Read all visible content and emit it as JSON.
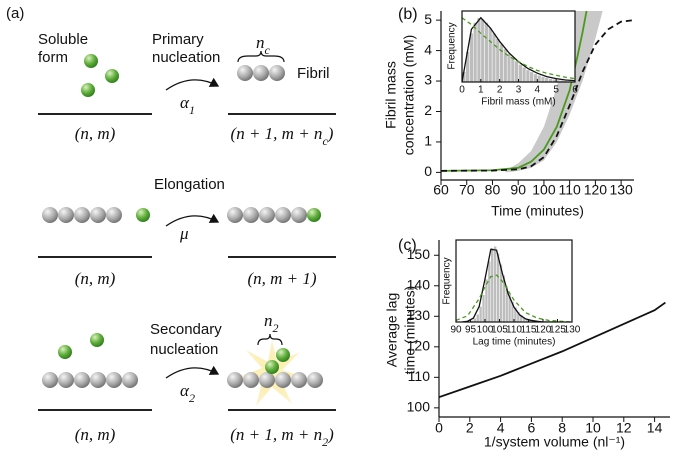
{
  "diagram": {
    "label": "(a)",
    "soluble": [
      "Soluble",
      "form"
    ],
    "primary": [
      "Primary",
      "nucleation"
    ],
    "alpha1": {
      "base": "α",
      "sub": "1"
    },
    "nc": {
      "base": "n",
      "sub": "c"
    },
    "fibril": "Fibril",
    "state1_left": "(n, m)",
    "state1_right": {
      "pre": "(n + 1, m + n",
      "sub": "c",
      "post": ")"
    },
    "elongation": "Elongation",
    "mu": "μ",
    "state2_left": "(n, m)",
    "state2_right": "(n, m + 1)",
    "secondary": [
      "Secondary",
      "nucleation"
    ],
    "alpha2": {
      "base": "α",
      "sub": "2"
    },
    "n2": {
      "base": "n",
      "sub": "2"
    },
    "state3_left": "(n, m)",
    "state3_right": {
      "pre": "(n + 1, m + n",
      "sub": "2",
      "post": ")"
    }
  },
  "chart_data": [
    {
      "type": "line",
      "panel_label": "(b)",
      "xlabel": "Time (minutes)",
      "ylabel": [
        "Fibril mass",
        "concentration (mM)"
      ],
      "xlim": [
        60,
        135
      ],
      "xticks": [
        60,
        70,
        80,
        90,
        100,
        110,
        120,
        130
      ],
      "ylim": [
        -0.25,
        5.3
      ],
      "yticks": [
        0,
        1,
        2,
        3,
        4,
        5
      ],
      "band": {
        "color": "#c9c9c9",
        "x": [
          85,
          90,
          95,
          100,
          105,
          110,
          115,
          120,
          125
        ],
        "upper": [
          0.05,
          0.3,
          0.7,
          1.5,
          2.8,
          4.6,
          7.5,
          10,
          12
        ],
        "lower": [
          0,
          0.05,
          0.15,
          0.4,
          1.0,
          1.9,
          3.0,
          4.4,
          6.0
        ]
      },
      "lines": [
        {
          "color": "#4a9a1e",
          "dash": false,
          "x": [
            60,
            80,
            90,
            95,
            100,
            105,
            110,
            113,
            115,
            117,
            119
          ],
          "values": [
            0.05,
            0.07,
            0.15,
            0.35,
            0.75,
            1.5,
            2.7,
            3.8,
            4.6,
            5.5,
            6.5
          ]
        },
        {
          "color": "#111111",
          "dash": true,
          "x": [
            60,
            80,
            90,
            95,
            100,
            105,
            110,
            115,
            120,
            125,
            130,
            135
          ],
          "values": [
            0.05,
            0.06,
            0.1,
            0.2,
            0.5,
            1.2,
            2.2,
            3.3,
            4.2,
            4.7,
            4.95,
            5.0
          ]
        }
      ]
    },
    {
      "type": "histogram",
      "xlabel": "Fibril mass (mM)",
      "ylabel": [
        "Frequency"
      ],
      "xlim": [
        0,
        6
      ],
      "xticks": [
        0,
        1,
        2,
        3,
        4,
        5,
        6
      ],
      "ylim": [
        0,
        1.05
      ],
      "color": "#bdbdbd",
      "bins": [
        0,
        0.2,
        0.4,
        0.6,
        0.8,
        1,
        1.2,
        1.4,
        1.6,
        1.8,
        2,
        2.2,
        2.4,
        2.6,
        2.8,
        3,
        3.2,
        3.4,
        3.6,
        3.8,
        4,
        4.2,
        4.4,
        4.6,
        4.8,
        5,
        5.2,
        5.4,
        5.6,
        5.8,
        6
      ],
      "counts": [
        0.15,
        0.45,
        0.72,
        0.88,
        0.95,
        0.93,
        0.88,
        0.8,
        0.72,
        0.64,
        0.56,
        0.49,
        0.42,
        0.36,
        0.31,
        0.26,
        0.22,
        0.18,
        0.15,
        0.12,
        0.1,
        0.08,
        0.065,
        0.05,
        0.04,
        0.03,
        0.025,
        0.02,
        0.015,
        0.01
      ],
      "lines": [
        {
          "color": "#111111",
          "dash": false,
          "x": [
            0,
            0.5,
            1,
            1.5,
            2,
            2.5,
            3,
            3.5,
            4,
            4.5,
            5,
            5.5,
            6
          ],
          "values": [
            0,
            0.78,
            0.95,
            0.8,
            0.6,
            0.43,
            0.3,
            0.2,
            0.13,
            0.08,
            0.05,
            0.03,
            0.02
          ]
        },
        {
          "color": "#4a9a1e",
          "dash": true,
          "x": [
            0,
            0.5,
            1,
            1.5,
            2,
            2.5,
            3,
            3.5,
            4,
            4.5,
            5,
            5.5,
            6
          ],
          "values": [
            0.95,
            0.85,
            0.72,
            0.6,
            0.48,
            0.38,
            0.3,
            0.23,
            0.17,
            0.13,
            0.1,
            0.07,
            0.05
          ]
        }
      ]
    },
    {
      "type": "line",
      "panel_label": "(c)",
      "xlabel": "1/system volume (nl⁻¹)",
      "ylabel": [
        "Average lag",
        "time (minutes)"
      ],
      "xlim": [
        0,
        15
      ],
      "xticks": [
        0,
        2,
        4,
        6,
        8,
        10,
        12,
        14
      ],
      "ylim": [
        97,
        155
      ],
      "yticks": [
        100,
        110,
        120,
        130,
        140,
        150
      ],
      "lines": [
        {
          "color": "#111111",
          "dash": false,
          "x": [
            0,
            2,
            4,
            6,
            8,
            10,
            12,
            14,
            14.7
          ],
          "values": [
            103.5,
            107,
            110.5,
            114.5,
            118.5,
            123,
            127.5,
            132,
            134.5
          ]
        }
      ]
    },
    {
      "type": "histogram",
      "xlabel": "Lag time (minutes)",
      "ylabel": [
        "Frequency"
      ],
      "xlim": [
        90,
        130
      ],
      "xticks": [
        90,
        95,
        100,
        105,
        110,
        115,
        120,
        125,
        130
      ],
      "ylim": [
        0,
        1.05
      ],
      "color": "#bdbdbd",
      "bins": [
        95,
        96,
        97,
        98,
        99,
        100,
        101,
        102,
        103,
        104,
        105,
        106,
        107,
        108,
        109,
        110,
        111,
        112,
        113,
        114,
        115,
        116,
        117,
        118
      ],
      "counts": [
        0.02,
        0.05,
        0.1,
        0.2,
        0.35,
        0.55,
        0.78,
        0.95,
        0.97,
        0.88,
        0.74,
        0.6,
        0.46,
        0.35,
        0.26,
        0.19,
        0.13,
        0.09,
        0.06,
        0.04,
        0.03,
        0.02,
        0.01
      ],
      "lines": [
        {
          "color": "#111111",
          "dash": false,
          "x": [
            92,
            94,
            96,
            98,
            100,
            102,
            104,
            106,
            108,
            110,
            112,
            114,
            116,
            118,
            120,
            124
          ],
          "values": [
            0,
            0.01,
            0.05,
            0.2,
            0.55,
            0.93,
            0.92,
            0.62,
            0.36,
            0.19,
            0.09,
            0.04,
            0.02,
            0.01,
            0,
            0
          ]
        },
        {
          "color": "#4a9a1e",
          "dash": true,
          "x": [
            90,
            94,
            98,
            100,
            102,
            104,
            106,
            108,
            110,
            114,
            118,
            122,
            126,
            130
          ],
          "values": [
            0.02,
            0.08,
            0.3,
            0.45,
            0.58,
            0.6,
            0.52,
            0.4,
            0.28,
            0.12,
            0.05,
            0.02,
            0.01,
            0
          ]
        }
      ]
    }
  ]
}
